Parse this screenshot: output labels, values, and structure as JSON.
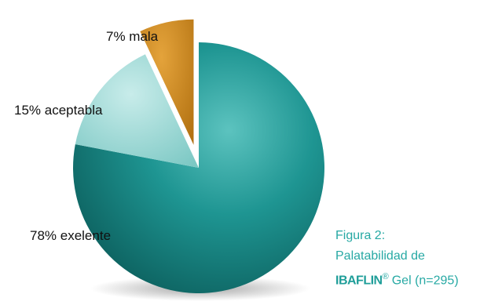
{
  "chart_data": {
    "type": "pie",
    "slices": [
      {
        "label": "exelente",
        "value": 78,
        "display": "78% exelente",
        "color": "#1b8f8c",
        "exploded": false
      },
      {
        "label": "aceptabla",
        "value": 15,
        "display": "15% aceptabla",
        "color": "#a8dcd9",
        "exploded": false
      },
      {
        "label": "mala",
        "value": 7,
        "display": "7% mala",
        "color": "#c9841a",
        "exploded": true
      }
    ],
    "caption": {
      "line1": "Figura 2:",
      "line2": "Palatabilidad de",
      "brand": "IBAFLIN",
      "reg": "®",
      "line3_rest": "Gel (n=295)"
    }
  }
}
